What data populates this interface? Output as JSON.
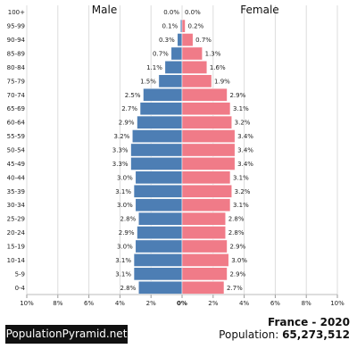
{
  "chart_data": {
    "type": "bar",
    "orientation": "horizontal",
    "left_label": "Male",
    "right_label": "Female",
    "categories": [
      "100+",
      "95-99",
      "90-94",
      "85-89",
      "80-84",
      "75-79",
      "70-74",
      "65-69",
      "60-64",
      "55-59",
      "50-54",
      "45-49",
      "40-44",
      "35-39",
      "30-34",
      "25-29",
      "20-24",
      "15-19",
      "10-14",
      "5-9",
      "0-4"
    ],
    "series": [
      {
        "name": "Male",
        "color": "#4d7eb4",
        "values": [
          0.0,
          0.1,
          0.3,
          0.7,
          1.1,
          1.5,
          2.5,
          2.7,
          2.9,
          3.2,
          3.3,
          3.3,
          3.0,
          3.1,
          3.0,
          2.8,
          2.9,
          3.0,
          3.1,
          3.1,
          2.8
        ],
        "labels": [
          "0.0%",
          "0.1%",
          "0.3%",
          "0.7%",
          "1.1%",
          "1.5%",
          "2.5%",
          "2.7%",
          "2.9%",
          "3.2%",
          "3.3%",
          "3.3%",
          "3.0%",
          "3.1%",
          "3.0%",
          "2.8%",
          "2.9%",
          "3.0%",
          "3.1%",
          "3.1%",
          "2.8%"
        ]
      },
      {
        "name": "Female",
        "color": "#f07b88",
        "values": [
          0.0,
          0.2,
          0.7,
          1.3,
          1.6,
          1.9,
          2.9,
          3.1,
          3.2,
          3.4,
          3.4,
          3.4,
          3.1,
          3.2,
          3.1,
          2.8,
          2.8,
          2.9,
          3.0,
          2.9,
          2.7
        ],
        "labels": [
          "0.0%",
          "0.2%",
          "0.7%",
          "1.3%",
          "1.6%",
          "1.9%",
          "2.9%",
          "3.1%",
          "3.2%",
          "3.4%",
          "3.4%",
          "3.4%",
          "3.1%",
          "3.2%",
          "3.1%",
          "2.8%",
          "2.8%",
          "2.9%",
          "3.0%",
          "2.9%",
          "2.7%"
        ]
      }
    ],
    "x_ticks": [
      "10%",
      "8%",
      "6%",
      "4%",
      "2%",
      "0%",
      "2%",
      "4%",
      "6%",
      "8%",
      "10%"
    ],
    "xlim": [
      -10,
      10
    ],
    "grid": true
  },
  "footer": {
    "brand": "PopulationPyramid.net",
    "country": "France - 2020",
    "population_label": "Population: ",
    "population_value": "65,273,512"
  }
}
